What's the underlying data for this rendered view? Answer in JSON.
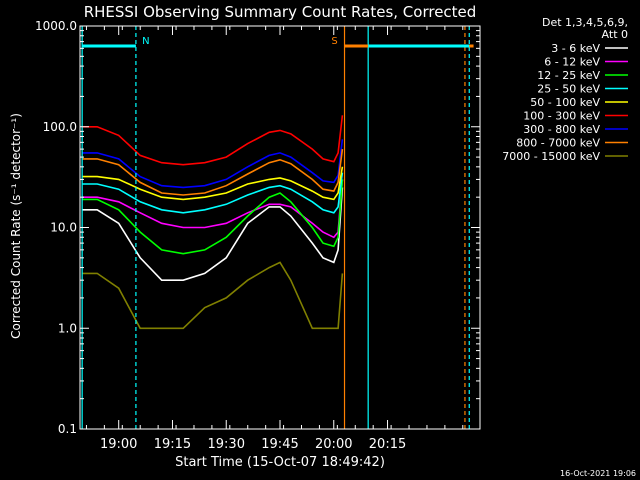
{
  "chart_data": {
    "type": "line",
    "title": "RHESSI Observing Summary Count Rates, Corrected",
    "xlabel": "Start Time (15-Oct-07 18:49:42)",
    "ylabel": "Corrected Count Rate (s⁻¹ detector⁻¹)",
    "yscale": "log",
    "ylim": [
      0.1,
      1000
    ],
    "xlim_minutes": [
      18.82,
      20.68
    ],
    "x_tick_labels": [
      "19:00",
      "19:15",
      "19:30",
      "19:45",
      "20:00",
      "20:15"
    ],
    "x_tick_minutes": [
      19.0,
      19.25,
      19.5,
      19.75,
      20.0,
      20.25
    ],
    "y_tick_labels": [
      "0.1",
      "1.0",
      "10.0",
      "100.0",
      "1000.0"
    ],
    "y_tick_values": [
      0.1,
      1,
      10,
      100,
      1000
    ],
    "legend_header": [
      "Det 1,3,4,5,6,9,",
      "Att 0"
    ],
    "legend_position": "top-right",
    "flags": [
      {
        "label": "N",
        "color": "#00ffff",
        "start": 18.83,
        "end": 19.08
      },
      {
        "label": "S",
        "color": "#ff8000",
        "start": 20.05,
        "end": 20.65
      },
      {
        "label": "",
        "color": "#00ffff",
        "start": 20.16,
        "end": 20.63
      }
    ],
    "vlines": [
      {
        "x": 18.83,
        "color": "#00ffff",
        "dashed": false
      },
      {
        "x": 19.08,
        "color": "#00ffff",
        "dashed": true
      },
      {
        "x": 20.05,
        "color": "#ff8000",
        "dashed": false
      },
      {
        "x": 20.16,
        "color": "#00ffff",
        "dashed": false
      },
      {
        "x": 20.61,
        "color": "#ff8000",
        "dashed": true
      },
      {
        "x": 20.63,
        "color": "#00ffff",
        "dashed": true
      }
    ],
    "x": [
      18.83,
      18.9,
      19.0,
      19.1,
      19.2,
      19.3,
      19.4,
      19.5,
      19.6,
      19.7,
      19.75,
      19.8,
      19.9,
      19.95,
      20.0,
      20.02,
      20.04
    ],
    "series": [
      {
        "name": "3 - 6 keV",
        "color": "#ffffff",
        "values": [
          15,
          15,
          11,
          5,
          3,
          3,
          3.5,
          5,
          11,
          16,
          16,
          13,
          7,
          5,
          4.5,
          6,
          25
        ]
      },
      {
        "name": "6 - 12 keV",
        "color": "#ff00ff",
        "values": [
          20,
          20,
          18,
          14,
          11,
          10,
          10,
          11,
          14,
          17,
          17,
          16,
          11,
          9,
          8,
          9,
          30
        ]
      },
      {
        "name": "12 - 25 keV",
        "color": "#00ff00",
        "values": [
          19,
          19,
          15,
          9,
          6,
          5.5,
          6,
          8,
          13,
          20,
          22,
          18,
          10,
          7,
          6.5,
          8,
          30
        ]
      },
      {
        "name": "25 - 50 keV",
        "color": "#00ffff",
        "values": [
          27,
          27,
          24,
          18,
          15,
          14,
          15,
          17,
          21,
          25,
          26,
          24,
          18,
          15,
          14,
          16,
          35
        ]
      },
      {
        "name": "50 - 100 keV",
        "color": "#ffff00",
        "values": [
          32,
          32,
          30,
          24,
          20,
          19,
          20,
          22,
          27,
          30,
          31,
          29,
          23,
          20,
          19,
          22,
          40
        ]
      },
      {
        "name": "100 - 300 keV",
        "color": "#ff0000",
        "values": [
          100,
          100,
          82,
          52,
          44,
          42,
          44,
          50,
          68,
          88,
          92,
          85,
          60,
          48,
          45,
          55,
          130
        ]
      },
      {
        "name": "300 - 800 keV",
        "color": "#0000ff",
        "values": [
          55,
          55,
          48,
          32,
          26,
          25,
          26,
          30,
          40,
          52,
          55,
          50,
          35,
          29,
          28,
          33,
          75
        ]
      },
      {
        "name": "800 - 7000 keV",
        "color": "#ff8000",
        "values": [
          48,
          48,
          42,
          28,
          22,
          21,
          22,
          26,
          34,
          44,
          47,
          43,
          30,
          24,
          23,
          28,
          60
        ]
      },
      {
        "name": "7000 - 15000 keV",
        "color": "#808000",
        "values": [
          3.5,
          3.5,
          2.5,
          1.0,
          1.0,
          1.0,
          1.6,
          2,
          3,
          4,
          4.5,
          3,
          1,
          1,
          1,
          1,
          3.5
        ]
      }
    ]
  },
  "footer_timestamp": "16-Oct-2021 19:06"
}
